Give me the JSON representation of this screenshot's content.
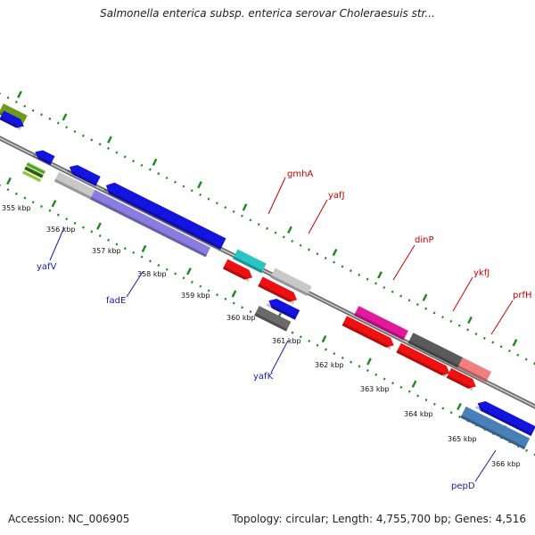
{
  "title": "Salmonella enterica subsp. enterica serovar Choleraesuis str...",
  "footer": {
    "accession": "Accession: NC_006905",
    "stats": "Topology: circular; Length: 4,755,700 bp; Genes: 4,516"
  },
  "colors": {
    "background": "#ffffff",
    "backbone": "#8a8a8a",
    "tick_dots": "#1a8a1a",
    "label_red": "#cc0000",
    "label_blue": "#1a1aaa"
  },
  "kbp_ticks": [
    "355 kbp",
    "356 kbp",
    "357 kbp",
    "358 kbp",
    "359 kbp",
    "360 kbp",
    "361 kbp",
    "362 kbp",
    "363 kbp",
    "364 kbp",
    "365 kbp",
    "366 kbp"
  ],
  "gene_labels": [
    "gmhA",
    "yafJ",
    "dinP",
    "ykfJ",
    "prfH",
    "yafV",
    "fadE",
    "yafK",
    "pepD"
  ]
}
